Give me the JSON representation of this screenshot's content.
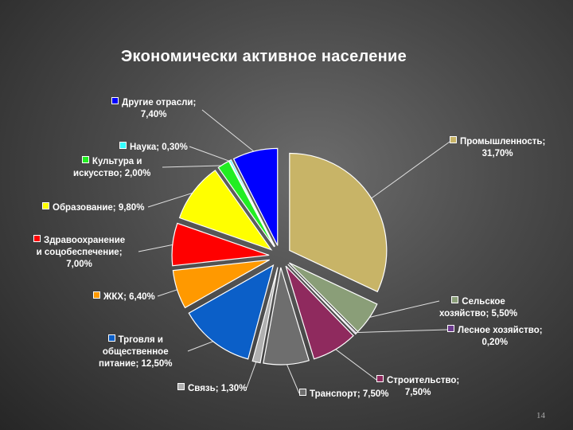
{
  "page_number": "14",
  "chart_data": {
    "type": "pie",
    "title": "Экономически активное население",
    "legend": "none",
    "slices": [
      {
        "key": "industry",
        "color": "#c8b467",
        "value": 31.7,
        "lines": [
          "Промышленность;",
          "31,70%"
        ]
      },
      {
        "key": "agriculture",
        "color": "#8a9e78",
        "value": 5.5,
        "lines": [
          "Сельское",
          "хозяйство; 5,50%"
        ]
      },
      {
        "key": "forestry",
        "color": "#6d3c8e",
        "value": 0.2,
        "lines": [
          "Лесное хозяйство;",
          "0,20%"
        ]
      },
      {
        "key": "construction",
        "color": "#8f2a5e",
        "value": 7.5,
        "lines": [
          "Строительство;",
          "7,50%"
        ]
      },
      {
        "key": "transport",
        "color": "#6e6e6e",
        "value": 7.5,
        "lines": [
          "Транспорт; 7,50%"
        ]
      },
      {
        "key": "communication",
        "color": "#b0b0b0",
        "value": 1.3,
        "lines": [
          "Связь; 1,30%"
        ]
      },
      {
        "key": "trade",
        "color": "#0b5fc8",
        "value": 12.5,
        "lines": [
          "Трговля и",
          "общественное",
          "питание; 12,50%"
        ]
      },
      {
        "key": "housing",
        "color": "#ff9900",
        "value": 6.4,
        "lines": [
          "ЖКХ; 6,40%"
        ]
      },
      {
        "key": "healthcare",
        "color": "#ff0000",
        "value": 7.0,
        "lines": [
          "Здравоохранение",
          "и соцобеспечение;",
          "7,00%"
        ]
      },
      {
        "key": "education",
        "color": "#ffff00",
        "value": 9.8,
        "lines": [
          "Образование; 9,80%"
        ]
      },
      {
        "key": "culture",
        "color": "#22ee22",
        "value": 2.0,
        "lines": [
          "Культура и",
          "искусство; 2,00%"
        ]
      },
      {
        "key": "science",
        "color": "#33ffff",
        "value": 0.3,
        "lines": [
          "Наука; 0,30%"
        ]
      },
      {
        "key": "other",
        "color": "#0000ff",
        "value": 7.4,
        "lines": [
          "Другие отрасли;",
          "7,40%"
        ]
      }
    ]
  }
}
